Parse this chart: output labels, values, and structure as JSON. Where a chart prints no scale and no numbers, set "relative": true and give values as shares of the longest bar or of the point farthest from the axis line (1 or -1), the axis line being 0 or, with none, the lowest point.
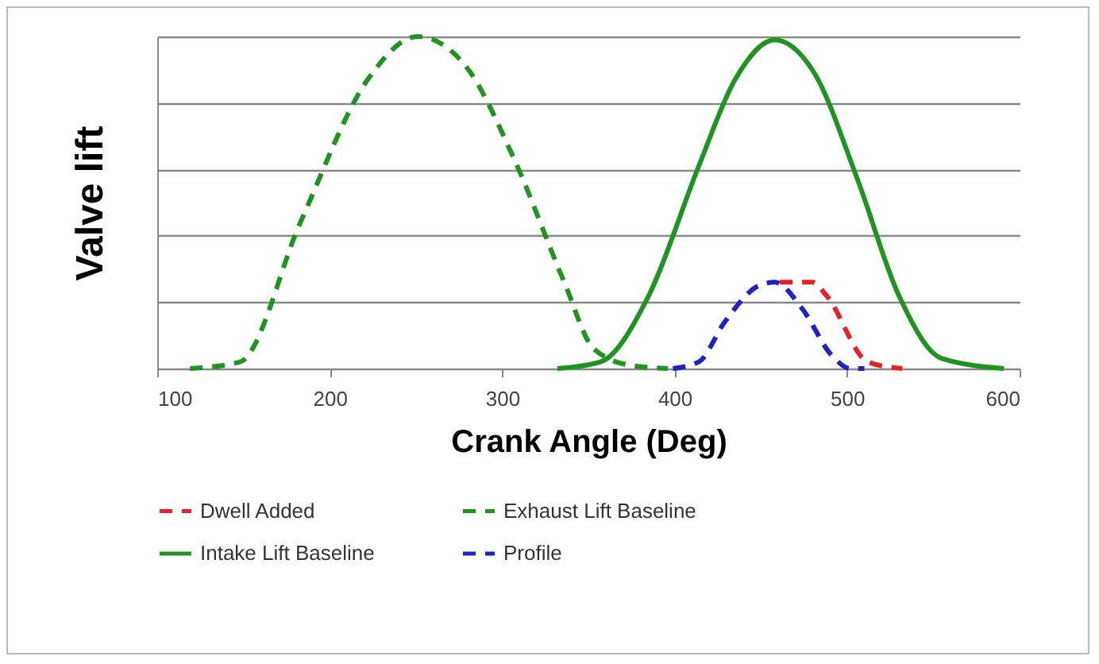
{
  "chart_data": {
    "type": "line",
    "relative": true,
    "xlabel": "Crank Angle  (Deg)",
    "ylabel": "Valve lift",
    "xlim": [
      100,
      600
    ],
    "xticks": [
      100,
      200,
      300,
      400,
      500,
      600
    ],
    "grid": "y",
    "legend": "bottom",
    "tick_labels": "x",
    "series": [
      {
        "name": "Dwell Added",
        "color": "#e8202a",
        "line_style": "dashed",
        "x": [
          461,
          474,
          480,
          488,
          512,
          532
        ],
        "values": [
          0.26,
          0.26,
          0.26,
          0.22,
          0.02,
          0
        ]
      },
      {
        "name": "Exhaust Lift Baseline",
        "color": "#1e951e",
        "line_style": "dashed",
        "x": [
          119,
          148,
          183,
          222,
          251,
          279,
          307,
          336,
          353,
          374,
          396
        ],
        "values": [
          0,
          0.02,
          0.44,
          0.87,
          1.0,
          0.91,
          0.63,
          0.26,
          0.06,
          0.01,
          0
        ]
      },
      {
        "name": "Intake Lift Baseline",
        "color": "#1e951e",
        "line_style": "solid",
        "x": [
          332,
          357,
          385,
          414,
          435,
          458,
          481,
          506,
          530,
          555,
          591
        ],
        "values": [
          0,
          0.02,
          0.22,
          0.61,
          0.87,
          0.99,
          0.89,
          0.57,
          0.22,
          0.03,
          0
        ]
      },
      {
        "name": "Profile",
        "color": "#2020c8",
        "line_style": "dashed",
        "x": [
          399,
          414,
          429,
          449,
          458,
          474,
          491,
          502,
          510
        ],
        "values": [
          0,
          0.02,
          0.14,
          0.25,
          0.26,
          0.18,
          0.04,
          0,
          0
        ]
      }
    ]
  }
}
